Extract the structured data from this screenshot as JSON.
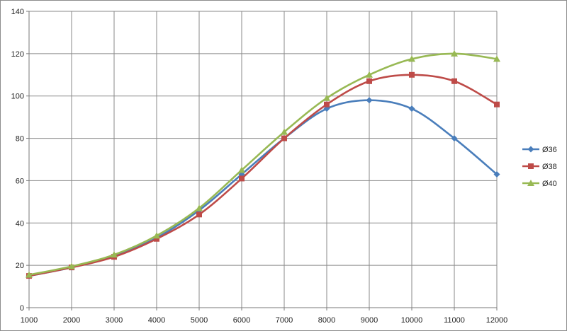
{
  "chart_data": {
    "type": "line",
    "smooth": true,
    "x": [
      1000,
      2000,
      3000,
      4000,
      5000,
      6000,
      7000,
      8000,
      9000,
      10000,
      11000,
      12000
    ],
    "xlim": [
      1000,
      12000
    ],
    "ylim": [
      0,
      140
    ],
    "x_ticks": [
      1000,
      2000,
      3000,
      4000,
      5000,
      6000,
      7000,
      8000,
      9000,
      10000,
      11000,
      12000
    ],
    "y_ticks": [
      0,
      20,
      40,
      60,
      80,
      100,
      120,
      140
    ],
    "grid": true,
    "legend_position": "right",
    "series": [
      {
        "name": "Ø36",
        "marker": "diamond",
        "color": "#4a7ebb",
        "values": [
          15,
          19,
          24.5,
          33,
          46,
          63,
          80,
          94,
          98,
          94,
          80,
          63
        ]
      },
      {
        "name": "Ø38",
        "marker": "square",
        "color": "#be4b48",
        "values": [
          15,
          19,
          24,
          32.5,
          44,
          61,
          80,
          96,
          107,
          110,
          107,
          96
        ]
      },
      {
        "name": "Ø40",
        "marker": "triangle",
        "color": "#98b954",
        "values": [
          15.5,
          19.5,
          25,
          34,
          47,
          65,
          83,
          99,
          110,
          117.5,
          120,
          117.5
        ]
      }
    ]
  }
}
